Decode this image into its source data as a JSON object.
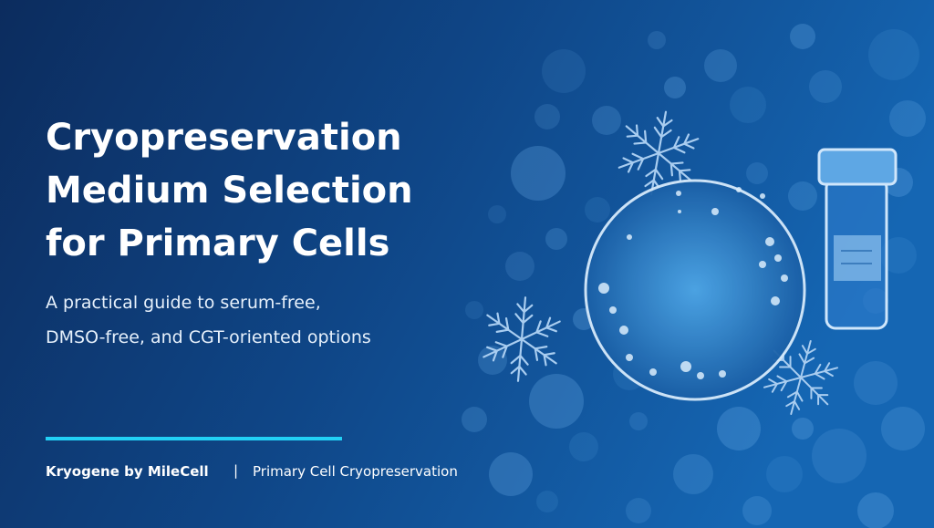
{
  "header": {
    "title_lines": [
      "Cryopreservation",
      "Medium Selection",
      "for Primary Cells"
    ],
    "subtitle_lines": [
      "A practical guide to serum-free,",
      "DMSO-free, and CGT-oriented options"
    ]
  },
  "footer": {
    "brand": "Kryogene by MileCell",
    "separator": "|",
    "tagline": "Primary Cell Cryopreservation"
  }
}
